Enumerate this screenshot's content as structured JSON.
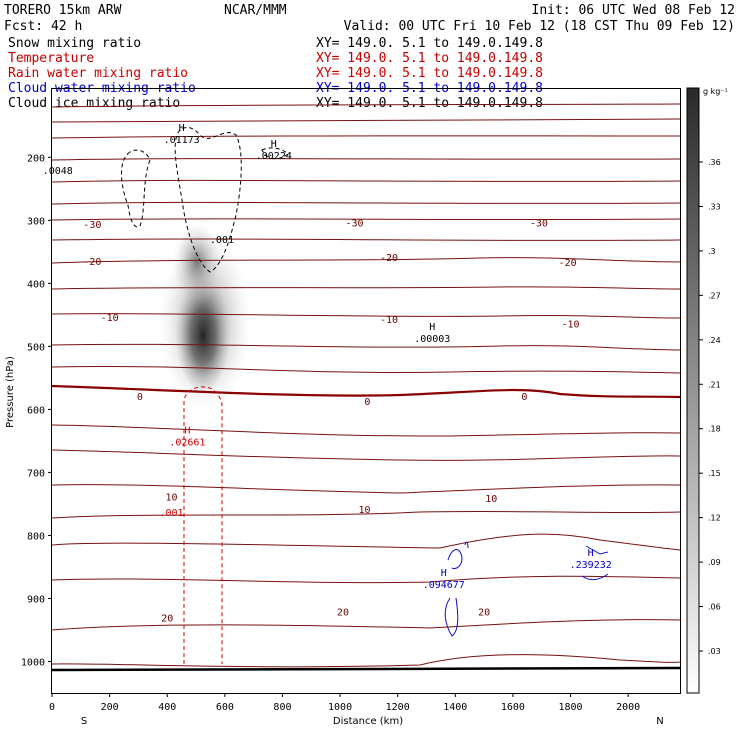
{
  "header": {
    "model": "TORERO  15km ARW",
    "org": "NCAR/MMM",
    "init": "Init: 06 UTC Wed 08 Feb 12",
    "fcst": "Fcst:   42 h",
    "valid": "Valid: 00 UTC Fri 10 Feb 12 (18 CST Thu 09 Feb 12)"
  },
  "fields": [
    {
      "name": "Snow mixing ratio",
      "xy": "XY= 149.0.  5.1 to 149.0.149.8",
      "color": "#000000"
    },
    {
      "name": "Temperature",
      "xy": "XY= 149.0.  5.1 to 149.0.149.8",
      "color": "#c00000"
    },
    {
      "name": "Rain water mixing ratio",
      "xy": "XY= 149.0.  5.1 to 149.0.149.8",
      "color": "#d00000"
    },
    {
      "name": "Cloud water mixing ratio",
      "xy": "XY= 149.0.  5.1 to 149.0.149.8",
      "color": "#0000c8"
    },
    {
      "name": "Cloud ice mixing ratio",
      "xy": "XY= 149.0.  5.1 to 149.0.149.8",
      "color": "#000000"
    }
  ],
  "chart_data": {
    "type": "cross-section",
    "xlabel": "Distance (km)",
    "ylabel": "Pressure (hPa)",
    "xlim": [
      0,
      2180
    ],
    "ylim": [
      1050,
      90
    ],
    "x_ticks": [
      0,
      200,
      400,
      600,
      800,
      1000,
      1200,
      1400,
      1600,
      1800,
      2000
    ],
    "y_ticks": [
      200,
      300,
      400,
      500,
      600,
      700,
      800,
      900,
      1000
    ],
    "left_end": "S",
    "right_end": "N",
    "colorbar": {
      "unit": "g kg⁻¹",
      "ticks": [
        ".36",
        ".33",
        ".3",
        ".27",
        ".24",
        ".21",
        ".18",
        ".15",
        ".12",
        ".09",
        ".06",
        ".03"
      ]
    },
    "temperature_labels": [
      {
        "text": "-30",
        "x": 140,
        "p": 307
      },
      {
        "text": "-30",
        "x": 1050,
        "p": 305
      },
      {
        "text": "-30",
        "x": 1690,
        "p": 305
      },
      {
        "text": "-20",
        "x": 140,
        "p": 366
      },
      {
        "text": "-20",
        "x": 1170,
        "p": 360
      },
      {
        "text": "-20",
        "x": 1790,
        "p": 368
      },
      {
        "text": "-10",
        "x": 200,
        "p": 455
      },
      {
        "text": "-10",
        "x": 1170,
        "p": 458
      },
      {
        "text": "-10",
        "x": 1800,
        "p": 465
      },
      {
        "text": "0",
        "x": 305,
        "p": 580
      },
      {
        "text": "0",
        "x": 1095,
        "p": 588
      },
      {
        "text": "0",
        "x": 1640,
        "p": 580
      },
      {
        "text": "10",
        "x": 415,
        "p": 740
      },
      {
        "text": "10",
        "x": 1085,
        "p": 760
      },
      {
        "text": "10",
        "x": 1525,
        "p": 742
      },
      {
        "text": "20",
        "x": 400,
        "p": 932
      },
      {
        "text": "20",
        "x": 1010,
        "p": 922
      },
      {
        "text": "20",
        "x": 1500,
        "p": 922
      }
    ],
    "maxima": [
      {
        "field": "Cloud ice mixing ratio",
        "value": ".01173",
        "x": 450,
        "p": 177
      },
      {
        "field": "Cloud ice mixing ratio",
        "value": ".00224",
        "x": 770,
        "p": 203
      },
      {
        "field": "Cloud ice mixing ratio",
        "value": ".00003",
        "x": 1320,
        "p": 493
      },
      {
        "field": "Rain water mixing ratio",
        "value": ".02661",
        "x": 470,
        "p": 657
      },
      {
        "field": "Cloud water mixing ratio",
        "value": ".094677",
        "x": 1360,
        "p": 883
      },
      {
        "field": "Cloud water mixing ratio",
        "value": ".239232",
        "x": 1870,
        "p": 852
      }
    ],
    "contour_labels": [
      {
        "field": "Cloud ice mixing ratio",
        "text": ".001",
        "x": 590,
        "p": 331
      },
      {
        "field": "Rain water mixing ratio",
        "text": ".001",
        "x": 415,
        "p": 764
      },
      {
        "field": "Cloud ice mixing ratio",
        "text": ".0048",
        "x": 20,
        "p": 222
      }
    ]
  }
}
